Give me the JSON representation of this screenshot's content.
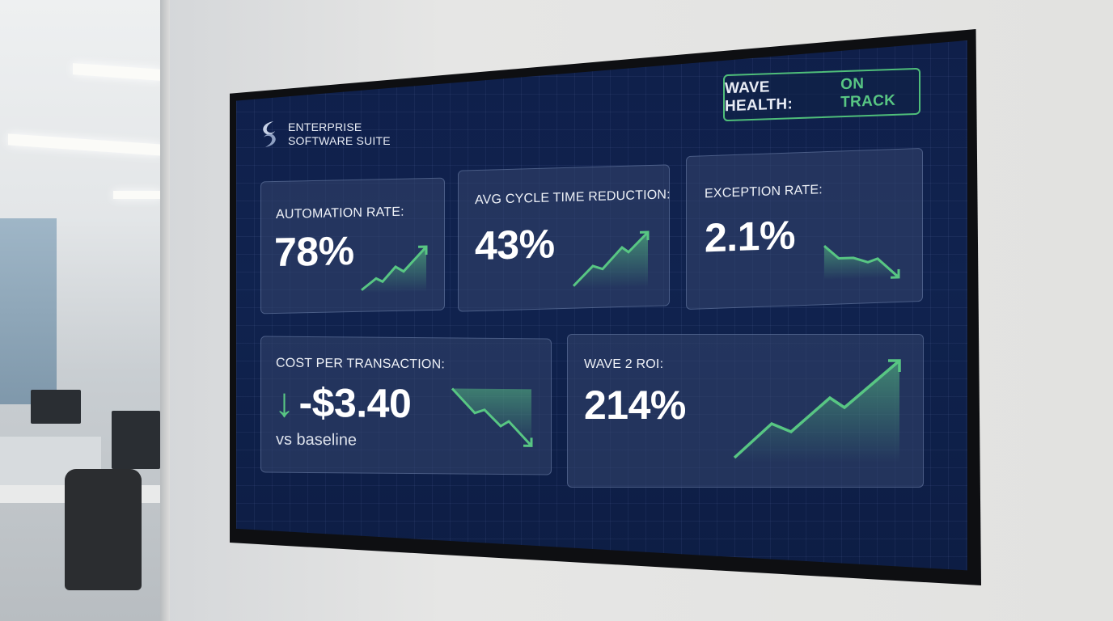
{
  "branding": {
    "line1": "ENTERPRISE",
    "line2": "SOFTWARE SUITE"
  },
  "health": {
    "label": "WAVE HEALTH:",
    "status": "ON TRACK"
  },
  "metrics": {
    "automation": {
      "label": "AUTOMATION RATE:",
      "value": "78%",
      "trend": "up"
    },
    "cycle": {
      "label": "AVG CYCLE TIME REDUCTION:",
      "value": "43%",
      "trend": "up"
    },
    "exception": {
      "label": "EXCEPTION RATE:",
      "value": "2.1%",
      "trend": "down"
    },
    "cost": {
      "label": "COST PER TRANSACTION:",
      "arrow": "↓",
      "value": "-$3.40",
      "sub": "vs baseline",
      "trend": "down"
    },
    "roi": {
      "label": "WAVE 2 ROI:",
      "value": "214%",
      "trend": "up"
    }
  },
  "colors": {
    "accent_green": "#58c683",
    "screen_bg": "#0f1f4a",
    "card_bg": "#34466e"
  },
  "icons": {
    "logo": "swirl-logo-icon",
    "trend_up": "trend-up-arrow-icon",
    "trend_down": "trend-down-arrow-icon"
  }
}
